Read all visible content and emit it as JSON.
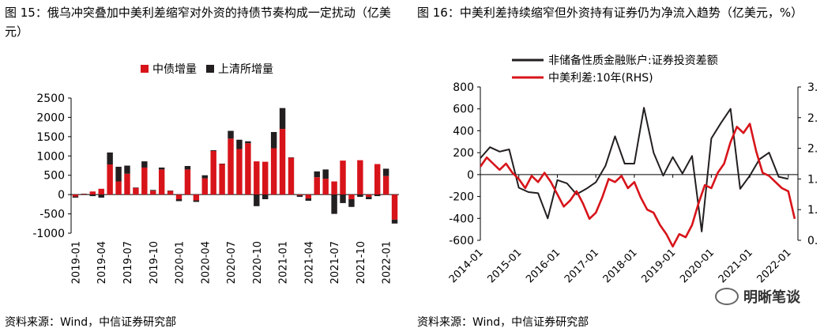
{
  "left": {
    "title": "图 15：俄乌冲突叠加中美利差缩窄对外资的持债节奏构成一定扰动（亿美元）",
    "source": "资料来源：Wind，中信证券研究部"
  },
  "right": {
    "title": "图 16：中美利差持续缩窄但外资持有证券仍为净流入趋势（亿美元，%）",
    "source": "资料来源：Wind，中信证券研究部",
    "watermark": "明晰笔谈"
  },
  "chart_data": [
    {
      "type": "bar",
      "stacked": true,
      "categories": [
        "2019-01",
        "2019-02",
        "2019-03",
        "2019-04",
        "2019-05",
        "2019-06",
        "2019-07",
        "2019-08",
        "2019-09",
        "2019-10",
        "2019-11",
        "2019-12",
        "2020-01",
        "2020-02",
        "2020-03",
        "2020-04",
        "2020-05",
        "2020-06",
        "2020-07",
        "2020-08",
        "2020-09",
        "2020-10",
        "2020-11",
        "2020-12",
        "2021-01",
        "2021-02",
        "2021-03",
        "2021-04",
        "2021-05",
        "2021-06",
        "2021-07",
        "2021-08",
        "2021-09",
        "2021-10",
        "2021-11",
        "2021-12",
        "2022-01",
        "2022-02"
      ],
      "tick_labels": [
        "2019-01",
        "2019-04",
        "2019-07",
        "2019-10",
        "2020-01",
        "2020-04",
        "2020-07",
        "2020-10",
        "2021-01",
        "2021-04",
        "2021-07",
        "2021-10",
        "2022-01"
      ],
      "tick_every": 3,
      "series": [
        {
          "name": "中债增量",
          "color": "#d7141a",
          "values": [
            -50,
            20,
            80,
            150,
            780,
            340,
            540,
            180,
            700,
            100,
            650,
            100,
            -120,
            650,
            -150,
            420,
            1130,
            800,
            1450,
            1180,
            1330,
            860,
            850,
            1200,
            1700,
            960,
            -20,
            -100,
            450,
            410,
            340,
            880,
            -120,
            890,
            -60,
            790,
            480,
            -650
          ]
        },
        {
          "name": "上清所增量",
          "color": "#231f20",
          "values": [
            -30,
            0,
            -40,
            -80,
            310,
            380,
            210,
            0,
            160,
            20,
            50,
            0,
            -50,
            90,
            -40,
            80,
            20,
            0,
            200,
            240,
            50,
            -300,
            -120,
            420,
            540,
            0,
            -40,
            -60,
            150,
            240,
            -500,
            -220,
            -200,
            -60,
            -60,
            -40,
            190,
            -100
          ]
        }
      ],
      "ylim": [
        -1000,
        2500
      ],
      "yticks": [
        -1000,
        -500,
        0,
        500,
        1000,
        1500,
        2000,
        2500
      ],
      "legend": "top"
    },
    {
      "type": "line",
      "x_tick_labels": [
        "2014-01",
        "2015-01",
        "2016-01",
        "2017-01",
        "2018-01",
        "2019-01",
        "2020-01",
        "2021-01",
        "2022-01"
      ],
      "x_range": [
        "2014-01",
        "2022-04"
      ],
      "series": [
        {
          "name": "非储备性质金融账户:证券投资差额",
          "axis": "left",
          "color": "#231f20",
          "x": [
            "2014-01",
            "2014-04",
            "2014-07",
            "2014-10",
            "2015-01",
            "2015-04",
            "2015-07",
            "2015-10",
            "2016-01",
            "2016-04",
            "2016-07",
            "2016-10",
            "2017-01",
            "2017-04",
            "2017-07",
            "2017-10",
            "2018-01",
            "2018-04",
            "2018-07",
            "2018-10",
            "2019-01",
            "2019-04",
            "2019-07",
            "2019-10",
            "2020-01",
            "2020-04",
            "2020-07",
            "2020-10",
            "2021-01",
            "2021-04",
            "2021-07",
            "2021-10",
            "2022-01"
          ],
          "y": [
            150,
            250,
            210,
            230,
            -120,
            -160,
            -170,
            -400,
            -50,
            -80,
            -180,
            -130,
            -70,
            80,
            350,
            100,
            100,
            610,
            200,
            -10,
            160,
            10,
            170,
            -520,
            330,
            470,
            600,
            -130,
            -10,
            140,
            200,
            -20,
            -40
          ]
        },
        {
          "name": "中美利差:10年(RHS)",
          "axis": "right",
          "color": "#d7141a",
          "x": [
            "2014-01",
            "2014-03",
            "2014-05",
            "2014-07",
            "2014-09",
            "2014-11",
            "2015-01",
            "2015-03",
            "2015-05",
            "2015-07",
            "2015-09",
            "2015-11",
            "2016-01",
            "2016-03",
            "2016-05",
            "2016-07",
            "2016-09",
            "2016-11",
            "2017-01",
            "2017-03",
            "2017-05",
            "2017-07",
            "2017-09",
            "2017-11",
            "2018-01",
            "2018-03",
            "2018-05",
            "2018-07",
            "2018-09",
            "2018-11",
            "2019-01",
            "2019-03",
            "2019-05",
            "2019-07",
            "2019-09",
            "2019-11",
            "2020-01",
            "2020-03",
            "2020-05",
            "2020-07",
            "2020-09",
            "2020-11",
            "2021-01",
            "2021-03",
            "2021-05",
            "2021-07",
            "2021-09",
            "2021-11",
            "2022-01",
            "2022-03"
          ],
          "y": [
            1.7,
            1.85,
            1.75,
            1.65,
            1.75,
            1.6,
            1.5,
            1.35,
            1.55,
            1.45,
            1.6,
            1.45,
            1.25,
            1.05,
            1.15,
            1.3,
            1.1,
            0.85,
            0.95,
            1.2,
            1.5,
            1.45,
            1.55,
            1.35,
            1.45,
            1.2,
            1.0,
            0.95,
            0.75,
            0.6,
            0.4,
            0.6,
            0.55,
            0.75,
            1.1,
            1.4,
            1.35,
            1.6,
            1.75,
            2.1,
            2.35,
            2.25,
            2.4,
            1.95,
            1.6,
            1.55,
            1.45,
            1.35,
            1.3,
            0.85
          ]
        }
      ],
      "y_left": {
        "range": [
          -600,
          800
        ],
        "ticks": [
          -600,
          -400,
          -200,
          0,
          200,
          400,
          600,
          800
        ]
      },
      "y_right": {
        "range": [
          0.5,
          3.0
        ],
        "tick_labels": [
          "0.",
          "1.",
          "1.",
          "2.",
          "2.",
          "3."
        ]
      },
      "legend": "top"
    }
  ]
}
